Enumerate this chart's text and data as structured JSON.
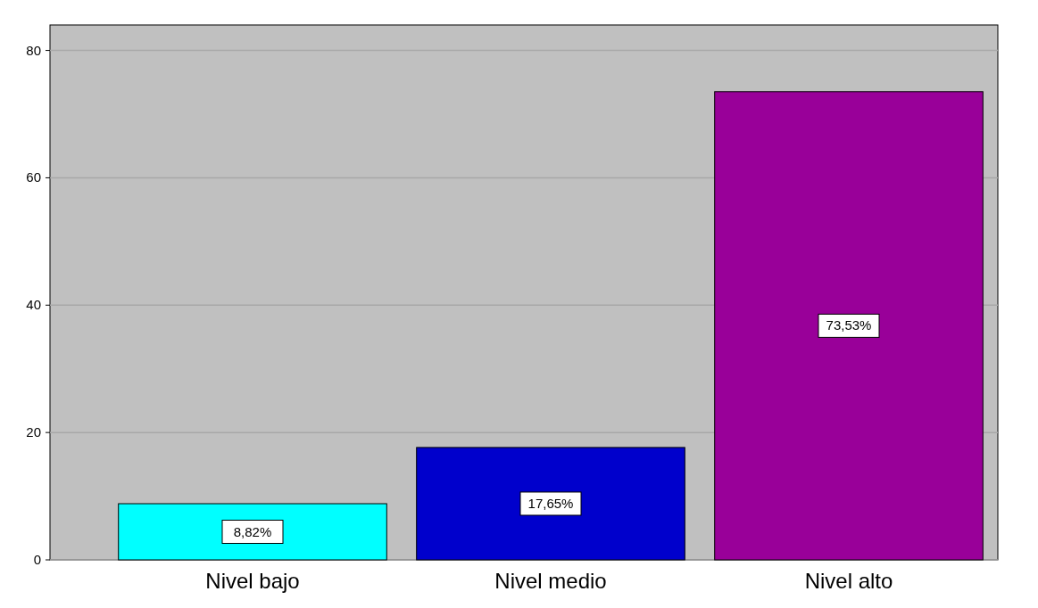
{
  "chart_data": {
    "type": "bar",
    "categories": [
      "Nivel bajo",
      "Nivel medio",
      "Nivel alto"
    ],
    "values": [
      8.82,
      17.65,
      73.53
    ],
    "colors": [
      "#00ffff",
      "#0000cc",
      "#990099"
    ],
    "value_labels": [
      "8,82%",
      "17,65%",
      "73,53%"
    ],
    "ylim": [
      0,
      84
    ],
    "yticks": [
      0,
      20,
      40,
      60,
      80
    ],
    "grid": "y"
  }
}
